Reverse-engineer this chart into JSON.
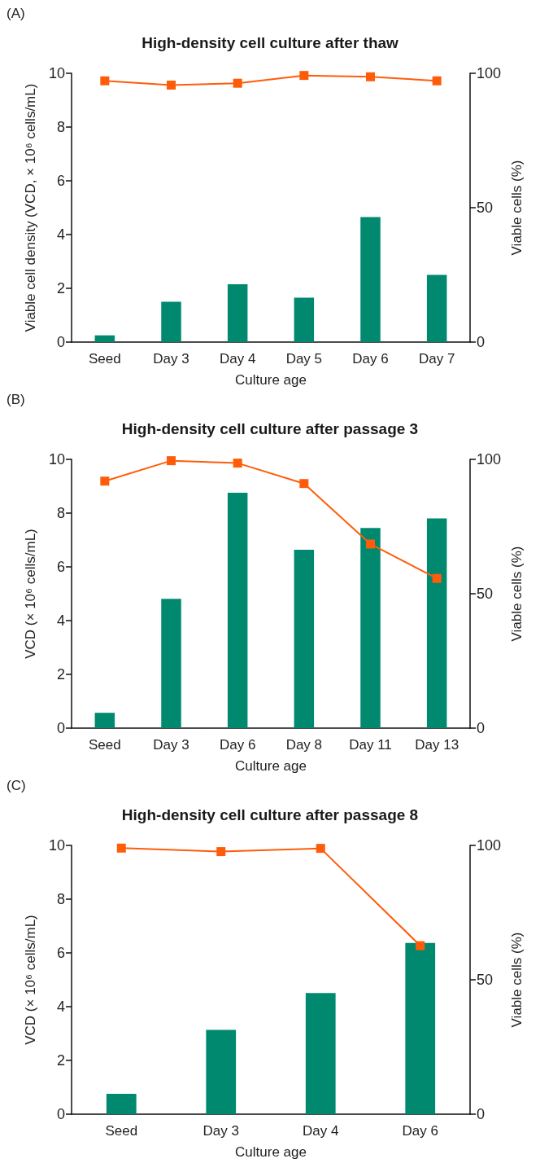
{
  "chart_data": [
    {
      "type": "bar",
      "title": "High-density cell culture after thaw",
      "xlabel": "Culture age",
      "ylabel": "Viable cell density (VCD, × 10⁶ cells/mL)",
      "y2label": "Viable cells (%)",
      "annotations": [
        "(A)"
      ],
      "categories": [
        "Seed",
        "Day 3",
        "Day 4",
        "Day 5",
        "Day 6",
        "Day 7"
      ],
      "series": [
        {
          "color": "#00896f",
          "values": [
            0.25,
            1.5,
            2.15,
            1.65,
            4.65,
            2.5
          ]
        },
        {
          "type": "line",
          "axis": "y2",
          "color": "#ff5c0a",
          "values": [
            97.2,
            95.6,
            96.3,
            99.2,
            98.7,
            97.2
          ]
        }
      ],
      "marker": "square",
      "ylim": [
        0,
        10
      ],
      "yticks": [
        0,
        2,
        4,
        6,
        8,
        10
      ],
      "y2lim": [
        0,
        100
      ],
      "y2ticks": [
        0,
        50,
        100
      ],
      "grid": false
    },
    {
      "type": "bar",
      "title": "High-density cell culture after passage 3",
      "xlabel": "Culture age",
      "ylabel": "VCD (× 10⁶ cells/mL)",
      "y2label": "Viable cells (%)",
      "annotations": [
        "(B)"
      ],
      "categories": [
        "Seed",
        "Day 3",
        "Day 6",
        "Day 8",
        "Day 11",
        "Day 13"
      ],
      "series": [
        {
          "color": "#00896f",
          "values": [
            0.57,
            4.81,
            8.76,
            6.64,
            7.45,
            7.8
          ]
        },
        {
          "type": "line",
          "axis": "y2",
          "color": "#ff5c0a",
          "values": [
            91.9,
            99.5,
            98.6,
            91.0,
            68.5,
            55.7
          ]
        }
      ],
      "marker": "square",
      "ylim": [
        0,
        10
      ],
      "yticks": [
        0,
        2,
        4,
        6,
        8,
        10
      ],
      "y2lim": [
        0,
        100
      ],
      "y2ticks": [
        0,
        50,
        100
      ],
      "grid": false
    },
    {
      "type": "bar",
      "title": "High-density cell culture after passage 8",
      "xlabel": "Culture age",
      "ylabel": "VCD (× 10⁶ cells/mL)",
      "y2label": "Viable cells (%)",
      "annotations": [
        "(C)"
      ],
      "categories": [
        "Seed",
        "Day 3",
        "Day 4",
        "Day 6"
      ],
      "series": [
        {
          "color": "#00896f",
          "values": [
            0.76,
            3.14,
            4.51,
            6.37
          ]
        },
        {
          "type": "line",
          "axis": "y2",
          "color": "#ff5c0a",
          "values": [
            99.0,
            97.7,
            98.9,
            62.7
          ]
        }
      ],
      "marker": "square",
      "ylim": [
        0,
        10
      ],
      "yticks": [
        0,
        2,
        4,
        6,
        8,
        10
      ],
      "y2lim": [
        0,
        100
      ],
      "y2ticks": [
        0,
        50,
        100
      ],
      "grid": false
    }
  ]
}
